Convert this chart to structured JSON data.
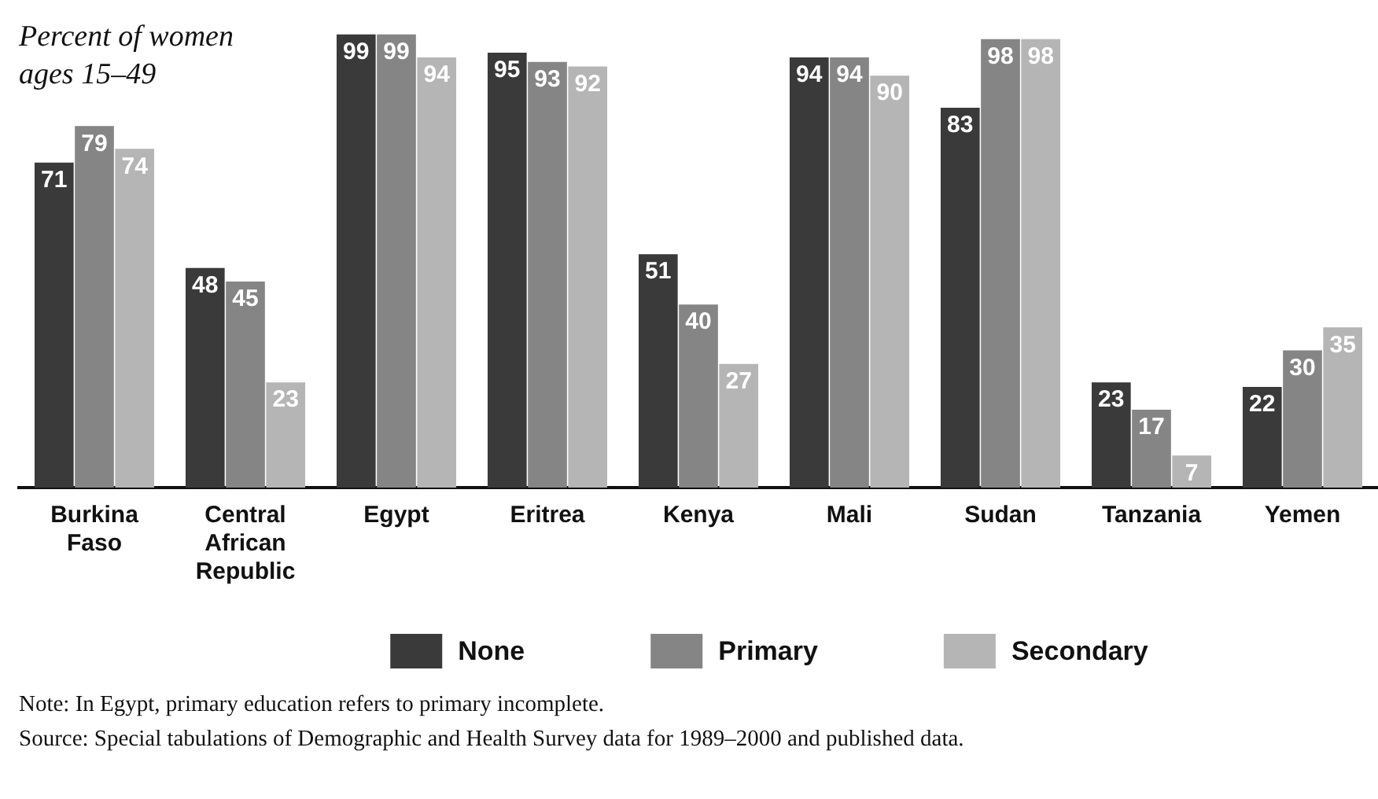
{
  "chart_data": {
    "type": "bar",
    "ylabel": "Percent of women ages 15–49",
    "categories": [
      "Burkina Faso",
      "Central African Republic",
      "Egypt",
      "Eritrea",
      "Kenya",
      "Mali",
      "Sudan",
      "Tanzania",
      "Yemen"
    ],
    "series": [
      {
        "name": "None",
        "color": "#3a3a3a",
        "values": [
          71,
          48,
          99,
          95,
          51,
          94,
          83,
          23,
          22
        ]
      },
      {
        "name": "Primary",
        "color": "#858585",
        "values": [
          79,
          45,
          99,
          93,
          40,
          94,
          98,
          17,
          30
        ]
      },
      {
        "name": "Secondary",
        "color": "#b5b5b5",
        "values": [
          74,
          23,
          94,
          92,
          27,
          90,
          98,
          7,
          35
        ]
      }
    ],
    "data_labels": true,
    "legend": "bottom",
    "annotations": [
      "Note: In Egypt, primary education refers to primary incomplete.",
      "Source: Special tabulations of Demographic and Health Survey data for 1989–2000 and published data."
    ]
  }
}
